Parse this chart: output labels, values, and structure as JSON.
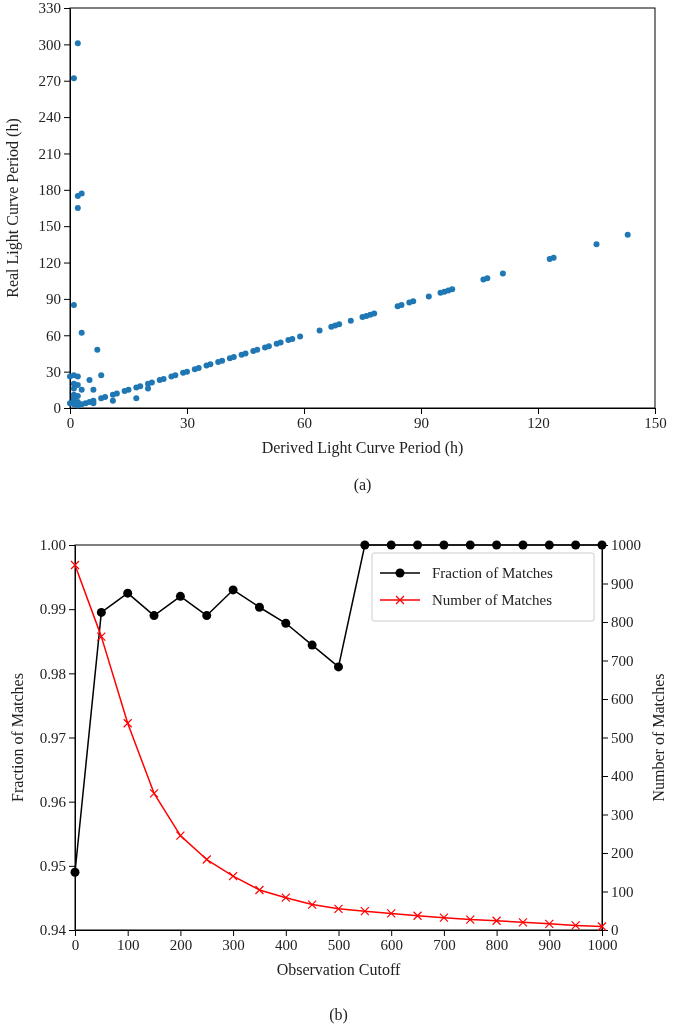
{
  "chart_data": [
    {
      "type": "scatter",
      "xlabel": "Derived Light Curve Period (h)",
      "ylabel": "Real Light Curve Period (h)",
      "xlim": [
        0,
        150
      ],
      "xticks": [
        0,
        30,
        60,
        90,
        120,
        150
      ],
      "ylim": [
        0,
        330
      ],
      "yticks": [
        0,
        30,
        60,
        90,
        120,
        150,
        180,
        210,
        240,
        270,
        300,
        330
      ],
      "grid": false,
      "marker": "circle",
      "annotations": [
        "(a)"
      ],
      "x": [
        2,
        1,
        3,
        2,
        2,
        1,
        3,
        7,
        8,
        5,
        1,
        2,
        0,
        1,
        2,
        1,
        3,
        6,
        1,
        2,
        1,
        1,
        2,
        0,
        1,
        6,
        11,
        17,
        20,
        2,
        3,
        4,
        5,
        6,
        8,
        9,
        11,
        12,
        14,
        15,
        17,
        18,
        20,
        21,
        23,
        24,
        26,
        27,
        29,
        30,
        32,
        33,
        35,
        36,
        38,
        39,
        41,
        42,
        44,
        45,
        47,
        48,
        50,
        51,
        53,
        54,
        56,
        57,
        59,
        64,
        67,
        68,
        69,
        72,
        75,
        76,
        77,
        78,
        84,
        85,
        87,
        88,
        92,
        95,
        96,
        97,
        98,
        106,
        107,
        111,
        123,
        124,
        135,
        143
      ],
      "series": [
        {
          "color": "#1f77b4",
          "values": [
            301,
            272,
            177,
            175,
            165,
            85,
            62,
            48,
            27,
            23,
            27,
            26,
            26,
            20,
            19,
            16,
            15,
            15,
            11,
            10,
            8,
            6,
            5,
            4,
            3,
            4,
            6,
            8,
            16,
            2,
            3,
            4,
            5,
            6,
            8,
            9,
            11,
            12,
            14,
            15,
            17,
            18,
            20,
            21,
            23,
            24,
            26,
            27,
            29,
            30,
            32,
            33,
            35,
            36,
            38,
            39,
            41,
            42,
            44,
            45,
            47,
            48,
            50,
            51,
            53,
            54,
            56,
            57,
            59,
            64,
            67,
            68,
            69,
            72,
            75,
            76,
            77,
            78,
            84,
            85,
            87,
            88,
            92,
            95,
            96,
            97,
            98,
            106,
            107,
            111,
            123,
            124,
            135,
            143
          ]
        }
      ]
    },
    {
      "type": "line",
      "xlabel": "Observation Cutoff",
      "ylabel": "Fraction of Matches",
      "y2label": "Number of Matches",
      "xlim": [
        0,
        1000
      ],
      "xticks": [
        0,
        100,
        200,
        300,
        400,
        500,
        600,
        700,
        800,
        900,
        1000
      ],
      "ylim": [
        0.94,
        1.0
      ],
      "yticks": [
        {
          "value": 0.94,
          "label": "0.94"
        },
        {
          "value": 0.95,
          "label": "0.95"
        },
        {
          "value": 0.96,
          "label": "0.96"
        },
        {
          "value": 0.97,
          "label": "0.97"
        },
        {
          "value": 0.98,
          "label": "0.98"
        },
        {
          "value": 0.99,
          "label": "0.99"
        },
        {
          "value": 1.0,
          "label": "1.00"
        }
      ],
      "y2lim": [
        0,
        1000
      ],
      "y2ticks": [
        0,
        100,
        200,
        300,
        400,
        500,
        600,
        700,
        800,
        900,
        1000
      ],
      "grid": false,
      "legend": "top right",
      "annotations": [
        "(b)"
      ],
      "x": [
        0,
        50,
        100,
        150,
        200,
        250,
        300,
        350,
        400,
        450,
        500,
        550,
        600,
        650,
        700,
        750,
        800,
        850,
        900,
        950,
        1000
      ],
      "series": [
        {
          "name": "Fraction of Matches",
          "color": "#000000",
          "marker": "circle",
          "values": [
            0.949,
            0.9895,
            0.9925,
            0.989,
            0.992,
            0.989,
            0.993,
            0.9903,
            0.9878,
            0.9844,
            0.981,
            1.0,
            1.0,
            1.0,
            1.0,
            1.0,
            1.0,
            1.0,
            1.0,
            1.0,
            1.0
          ]
        },
        {
          "name": "Number of Matches",
          "color": "#ff0000",
          "marker": "cross",
          "axis": "y2",
          "values": [
            948,
            762,
            537,
            355,
            245,
            183,
            140,
            104,
            84,
            66,
            55,
            49,
            43,
            37,
            32,
            27,
            24,
            20,
            16,
            12,
            9
          ]
        }
      ]
    }
  ]
}
